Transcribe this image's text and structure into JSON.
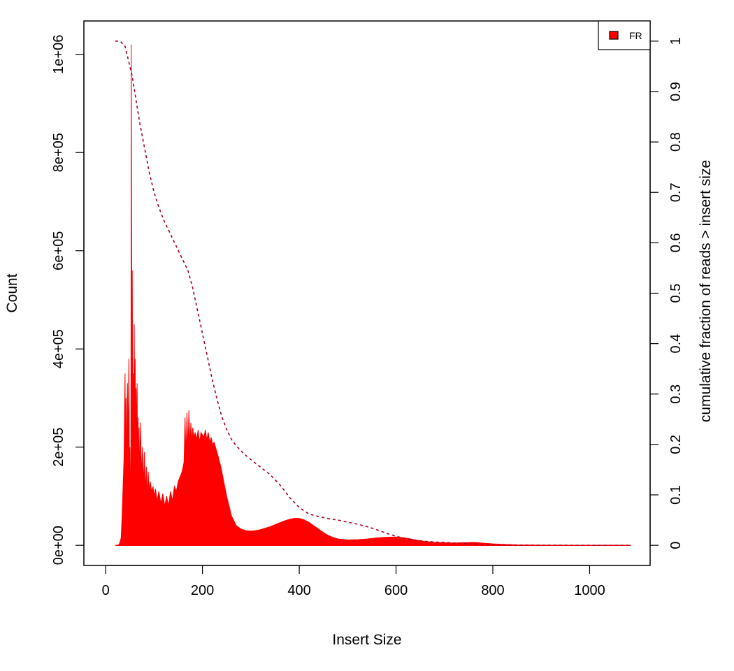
{
  "chart_data": {
    "type": "area",
    "title": "",
    "xlabel": "Insert Size",
    "ylabel": "Count",
    "y2label": "cumulative fraction of reads > insert size",
    "xlim": [
      -45,
      1125
    ],
    "ylim": [
      -41000,
      1068000
    ],
    "y2lim": [
      -0.04,
      1.04
    ],
    "x_ticks": [
      "0",
      "200",
      "400",
      "600",
      "800",
      "1000"
    ],
    "y_ticks": [
      "0e+00",
      "2e+05",
      "4e+05",
      "6e+05",
      "8e+05",
      "1e+06"
    ],
    "y2_ticks": [
      "0",
      "0.1",
      "0.2",
      "0.3",
      "0.4",
      "0.5",
      "0.6",
      "0.7",
      "0.8",
      "0.9",
      "1"
    ],
    "legend": {
      "position": "top-right",
      "entries": [
        {
          "label": "FR",
          "color": "#ff0000"
        }
      ]
    },
    "series": [
      {
        "name": "FR",
        "style": "filled-histogram",
        "color": "#ff0000",
        "x": [
          20,
          25,
          28,
          30,
          32,
          34,
          36,
          38,
          40,
          41,
          42,
          43,
          44,
          45,
          46,
          47,
          48,
          49,
          50,
          51,
          52,
          53,
          54,
          55,
          56,
          57,
          58,
          59,
          60,
          61,
          62,
          63,
          64,
          65,
          66,
          67,
          68,
          69,
          70,
          72,
          74,
          76,
          78,
          80,
          82,
          84,
          86,
          88,
          90,
          92,
          95,
          98,
          100,
          103,
          106,
          110,
          114,
          118,
          122,
          126,
          130,
          134,
          138,
          142,
          146,
          150,
          154,
          158,
          162,
          164,
          166,
          168,
          170,
          172,
          174,
          176,
          178,
          180,
          182,
          185,
          188,
          191,
          194,
          197,
          200,
          203,
          206,
          209,
          212,
          215,
          218,
          221,
          224,
          227,
          230,
          234,
          238,
          242,
          246,
          250,
          255,
          260,
          265,
          270,
          280,
          290,
          300,
          310,
          320,
          330,
          340,
          350,
          360,
          370,
          380,
          390,
          400,
          410,
          420,
          430,
          440,
          450,
          460,
          470,
          480,
          500,
          520,
          540,
          560,
          580,
          600,
          620,
          640,
          660,
          680,
          700,
          720,
          740,
          760,
          780,
          800,
          820,
          850,
          900,
          950,
          1000,
          1050,
          1085
        ],
        "values": [
          0,
          0,
          2000,
          8000,
          15000,
          60000,
          120000,
          180000,
          350000,
          200000,
          300000,
          150000,
          250000,
          330000,
          200000,
          280000,
          380000,
          150000,
          200000,
          120000,
          60000,
          1020000,
          400000,
          560000,
          250000,
          350000,
          200000,
          450000,
          250000,
          380000,
          200000,
          320000,
          180000,
          330000,
          150000,
          260000,
          130000,
          240000,
          140000,
          250000,
          140000,
          200000,
          120000,
          190000,
          110000,
          160000,
          100000,
          150000,
          110000,
          130000,
          110000,
          120000,
          100000,
          115000,
          90000,
          110000,
          85000,
          105000,
          80000,
          100000,
          80000,
          110000,
          90000,
          120000,
          110000,
          130000,
          140000,
          150000,
          170000,
          260000,
          180000,
          270000,
          190000,
          275000,
          200000,
          250000,
          210000,
          240000,
          220000,
          230000,
          215000,
          235000,
          210000,
          230000,
          225000,
          220000,
          235000,
          215000,
          230000,
          210000,
          220000,
          205000,
          210000,
          200000,
          190000,
          175000,
          160000,
          140000,
          120000,
          100000,
          80000,
          60000,
          50000,
          40000,
          33000,
          30000,
          29000,
          30000,
          32000,
          35000,
          38000,
          42000,
          46000,
          50000,
          53000,
          55000,
          55000,
          52000,
          47000,
          40000,
          33000,
          26000,
          20000,
          16000,
          13000,
          11000,
          11500,
          13000,
          15000,
          16500,
          17000,
          15000,
          11000,
          8000,
          6000,
          5500,
          5000,
          5500,
          6000,
          4500,
          3000,
          2000,
          1000,
          500,
          200,
          100,
          50,
          0
        ]
      },
      {
        "name": "",
        "style": "dashed-line",
        "color": "#a50021",
        "axis": "right",
        "x": [
          20,
          30,
          40,
          45,
          50,
          55,
          60,
          65,
          70,
          80,
          90,
          100,
          110,
          120,
          130,
          140,
          150,
          160,
          170,
          180,
          190,
          200,
          210,
          220,
          230,
          240,
          250,
          260,
          270,
          280,
          290,
          300,
          320,
          340,
          360,
          380,
          400,
          420,
          440,
          460,
          480,
          500,
          520,
          540,
          560,
          580,
          600,
          620,
          640,
          660,
          680,
          700,
          720,
          740,
          760,
          780,
          800,
          820,
          850,
          900,
          950,
          1000,
          1050,
          1085
        ],
        "values": [
          1.0,
          1.0,
          0.99,
          0.97,
          0.95,
          0.93,
          0.9,
          0.87,
          0.84,
          0.79,
          0.74,
          0.7,
          0.67,
          0.645,
          0.625,
          0.605,
          0.585,
          0.565,
          0.545,
          0.51,
          0.465,
          0.42,
          0.375,
          0.33,
          0.29,
          0.255,
          0.23,
          0.21,
          0.197,
          0.187,
          0.178,
          0.17,
          0.155,
          0.14,
          0.12,
          0.095,
          0.075,
          0.062,
          0.057,
          0.053,
          0.05,
          0.046,
          0.042,
          0.037,
          0.031,
          0.024,
          0.018,
          0.013,
          0.01,
          0.008,
          0.0065,
          0.0055,
          0.0045,
          0.0035,
          0.0025,
          0.0017,
          0.001,
          0.0006,
          0.0003,
          0.0001,
          5e-05,
          0.0,
          0.0,
          0.0
        ]
      }
    ]
  }
}
